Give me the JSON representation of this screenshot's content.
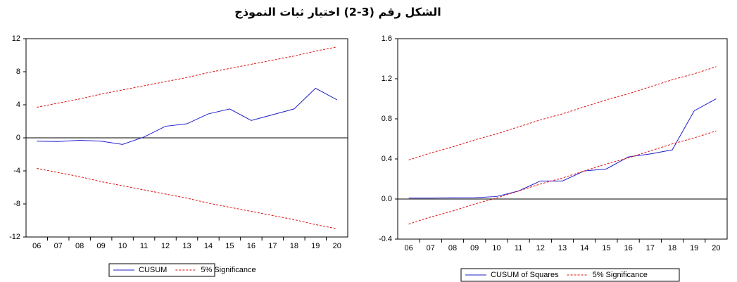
{
  "title": "الشكل رقم (3-2) اختبار ثبات النموذج",
  "chart_data": [
    {
      "type": "line",
      "categories": [
        "06",
        "07",
        "08",
        "09",
        "10",
        "11",
        "12",
        "13",
        "14",
        "15",
        "16",
        "17",
        "18",
        "19",
        "20"
      ],
      "ylim": [
        -12,
        12
      ],
      "yticks": [
        -12,
        -8,
        -4,
        0,
        4,
        8,
        12
      ],
      "hline": 0,
      "grid": false,
      "series": [
        {
          "name": "CUSUM",
          "color": "#1f1fcc",
          "style": "solid",
          "values": [
            -0.4,
            -0.45,
            -0.3,
            -0.4,
            -0.8,
            0.1,
            1.4,
            1.7,
            2.9,
            3.5,
            2.1,
            2.8,
            3.5,
            6.0,
            4.6
          ]
        },
        {
          "name": "5% Significance",
          "color": "#dd1111",
          "style": "dashed",
          "values": [
            3.7,
            4.2,
            4.7,
            5.3,
            5.8,
            6.3,
            6.8,
            7.3,
            7.9,
            8.4,
            8.9,
            9.4,
            9.9,
            10.5,
            11.0
          ]
        },
        {
          "color": "#dd1111",
          "style": "dashed",
          "values": [
            -3.7,
            -4.2,
            -4.7,
            -5.3,
            -5.8,
            -6.3,
            -6.8,
            -7.3,
            -7.9,
            -8.4,
            -8.9,
            -9.4,
            -9.9,
            -10.5,
            -11.0
          ]
        }
      ]
    },
    {
      "type": "line",
      "categories": [
        "06",
        "07",
        "08",
        "09",
        "10",
        "11",
        "12",
        "13",
        "14",
        "15",
        "16",
        "17",
        "18",
        "19",
        "20"
      ],
      "ylim": [
        -0.4,
        1.6
      ],
      "yticks": [
        -0.4,
        {
          "value": 0,
          "label": "0.0"
        },
        0.4,
        0.8,
        1.2,
        1.6
      ],
      "hline": 0,
      "grid": false,
      "series": [
        {
          "name": "CUSUM of Squares",
          "color": "#1f1fcc",
          "style": "solid",
          "values": [
            0.01,
            0.01,
            0.012,
            0.013,
            0.025,
            0.08,
            0.18,
            0.18,
            0.28,
            0.3,
            0.42,
            0.45,
            0.49,
            0.88,
            1.0
          ]
        },
        {
          "name": "5% Significance",
          "color": "#dd1111",
          "style": "dashed",
          "values": [
            0.39,
            0.46,
            0.52,
            0.59,
            0.65,
            0.72,
            0.79,
            0.85,
            0.92,
            0.99,
            1.05,
            1.12,
            1.19,
            1.25,
            1.32
          ]
        },
        {
          "color": "#dd1111",
          "style": "dashed",
          "values": [
            -0.25,
            -0.18,
            -0.12,
            -0.05,
            0.01,
            0.08,
            0.15,
            0.21,
            0.28,
            0.35,
            0.41,
            0.48,
            0.55,
            0.61,
            0.68
          ]
        }
      ]
    }
  ]
}
